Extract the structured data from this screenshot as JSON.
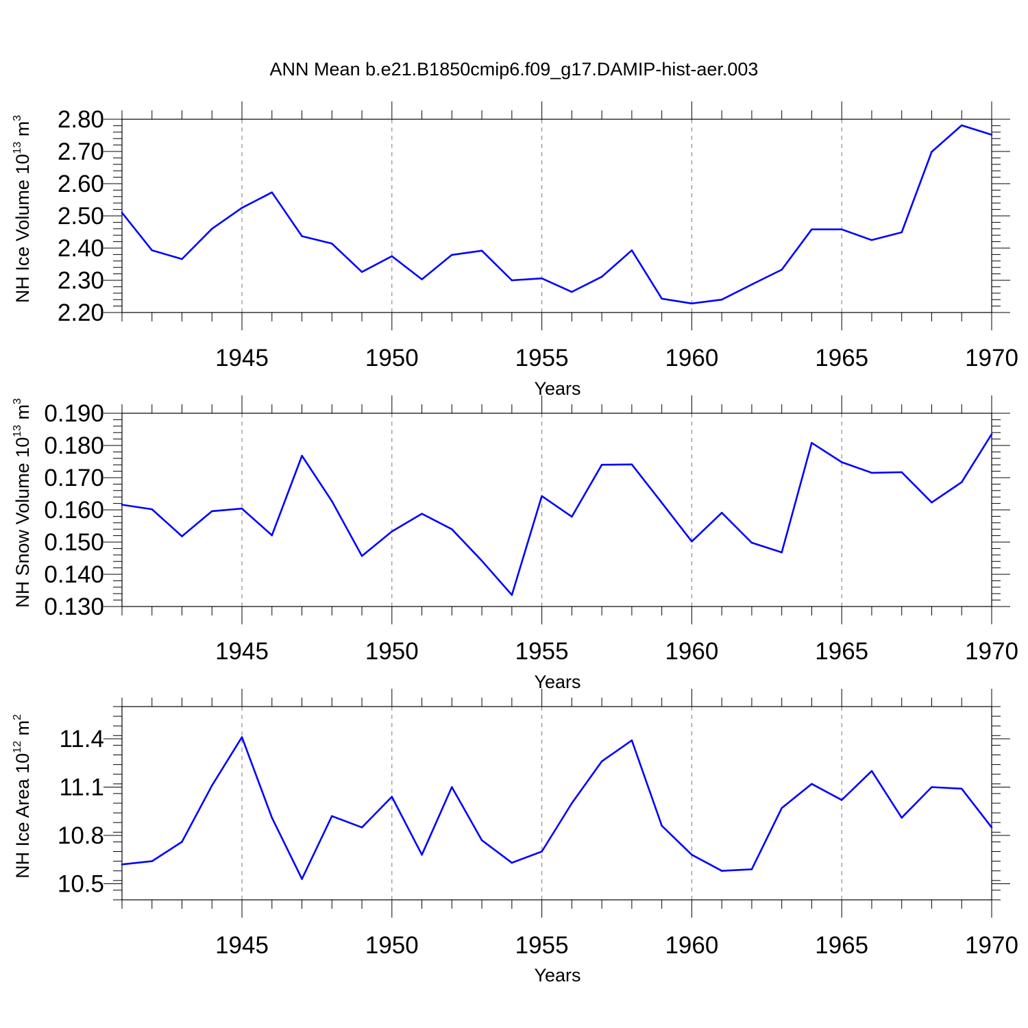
{
  "title": "ANN Mean b.e21.B1850cmip6.f09_g17.DAMIP-hist-aer.003",
  "colors": {
    "series": "#0000ff",
    "axes": "#000000",
    "grid": "#777777"
  },
  "chart_data": [
    {
      "type": "line",
      "xlabel": "Years",
      "ylabel": {
        "main": "NH Ice Volume 10",
        "sup": "13",
        "unit": " m",
        "unit_sup": "3"
      },
      "xlim": [
        1941,
        1970
      ],
      "ylim": [
        2.2,
        2.8
      ],
      "xticks": [
        "1945",
        "1950",
        "1955",
        "1960",
        "1965",
        "1970"
      ],
      "yticks": [
        {
          "value": 2.2,
          "label": "2.20"
        },
        {
          "value": 2.3,
          "label": "2.30"
        },
        {
          "value": 2.4,
          "label": "2.40"
        },
        {
          "value": 2.5,
          "label": "2.50"
        },
        {
          "value": 2.6,
          "label": "2.60"
        },
        {
          "value": 2.7,
          "label": "2.70"
        },
        {
          "value": 2.8,
          "label": "2.80"
        }
      ],
      "grid": "vertical dashed at major x ticks",
      "x": [
        1941,
        1942,
        1943,
        1944,
        1945,
        1946,
        1947,
        1948,
        1949,
        1950,
        1951,
        1952,
        1953,
        1954,
        1955,
        1956,
        1957,
        1958,
        1959,
        1960,
        1961,
        1962,
        1963,
        1964,
        1965,
        1966,
        1967,
        1968,
        1969,
        1970
      ],
      "values": [
        2.51,
        2.393,
        2.366,
        2.46,
        2.525,
        2.573,
        2.437,
        2.414,
        2.326,
        2.375,
        2.303,
        2.379,
        2.392,
        2.3,
        2.306,
        2.264,
        2.311,
        2.393,
        2.243,
        2.228,
        2.24,
        2.287,
        2.333,
        2.458,
        2.458,
        2.425,
        2.449,
        2.699,
        2.781,
        2.752
      ]
    },
    {
      "type": "line",
      "xlabel": "Years",
      "ylabel": {
        "main": "NH Snow Volume 10",
        "sup": "13",
        "unit": " m",
        "unit_sup": "3"
      },
      "xlim": [
        1941,
        1970
      ],
      "ylim": [
        0.13,
        0.19
      ],
      "xticks": [
        "1945",
        "1950",
        "1955",
        "1960",
        "1965",
        "1970"
      ],
      "yticks": [
        {
          "value": 0.13,
          "label": "0.130"
        },
        {
          "value": 0.14,
          "label": "0.140"
        },
        {
          "value": 0.15,
          "label": "0.150"
        },
        {
          "value": 0.16,
          "label": "0.160"
        },
        {
          "value": 0.17,
          "label": "0.170"
        },
        {
          "value": 0.18,
          "label": "0.180"
        },
        {
          "value": 0.19,
          "label": "0.190"
        }
      ],
      "grid": "vertical dashed at major x ticks",
      "x": [
        1941,
        1942,
        1943,
        1944,
        1945,
        1946,
        1947,
        1948,
        1949,
        1950,
        1951,
        1952,
        1953,
        1954,
        1955,
        1956,
        1957,
        1958,
        1959,
        1960,
        1961,
        1962,
        1963,
        1964,
        1965,
        1966,
        1967,
        1968,
        1969,
        1970
      ],
      "values": [
        0.1616,
        0.1602,
        0.1518,
        0.1596,
        0.1604,
        0.1521,
        0.1768,
        0.1627,
        0.1457,
        0.1533,
        0.1588,
        0.154,
        0.1442,
        0.1336,
        0.1643,
        0.1579,
        0.174,
        0.1741,
        0.1622,
        0.1502,
        0.1591,
        0.1498,
        0.1468,
        0.1808,
        0.1748,
        0.1715,
        0.1717,
        0.1623,
        0.1686,
        0.1835
      ]
    },
    {
      "type": "line",
      "xlabel": "Years",
      "ylabel": {
        "main": "NH Ice Area 10",
        "sup": "12",
        "unit": " m",
        "unit_sup": "2"
      },
      "xlim": [
        1941,
        1970
      ],
      "ylim": [
        10.4,
        11.6
      ],
      "xticks": [
        "1945",
        "1950",
        "1955",
        "1960",
        "1965",
        "1970"
      ],
      "yticks": [
        {
          "value": 10.5,
          "label": "10.5"
        },
        {
          "value": 10.8,
          "label": "10.8"
        },
        {
          "value": 11.1,
          "label": "11.1"
        },
        {
          "value": 11.4,
          "label": "11.4"
        }
      ],
      "grid": "vertical dashed at major x ticks",
      "x": [
        1941,
        1942,
        1943,
        1944,
        1945,
        1946,
        1947,
        1948,
        1949,
        1950,
        1951,
        1952,
        1953,
        1954,
        1955,
        1956,
        1957,
        1958,
        1959,
        1960,
        1961,
        1962,
        1963,
        1964,
        1965,
        1966,
        1967,
        1968,
        1969,
        1970
      ],
      "values": [
        10.62,
        10.64,
        10.76,
        11.11,
        11.41,
        10.91,
        10.53,
        10.92,
        10.85,
        11.04,
        10.68,
        11.1,
        10.77,
        10.63,
        10.7,
        11.0,
        11.26,
        11.39,
        10.86,
        10.68,
        10.58,
        10.59,
        10.97,
        11.12,
        11.02,
        11.2,
        10.91,
        11.1,
        11.09,
        10.85
      ]
    }
  ]
}
